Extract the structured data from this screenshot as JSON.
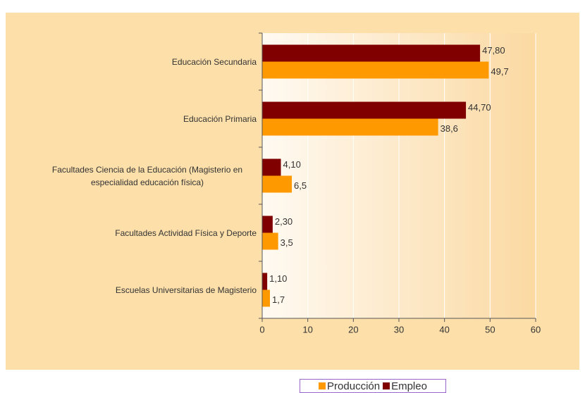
{
  "chart_data": {
    "type": "hbar",
    "categories": [
      "Educación Secundaria",
      "Educación Primaria",
      "Facultades Ciencia de la Educación (Magisterio en especialidad educación física)",
      "Facultades Actividad Física y Deporte",
      "Escuelas Universitarias de Magisterio"
    ],
    "series": [
      {
        "name": "Producción",
        "color": "#ff9900",
        "values": [
          49.7,
          38.6,
          6.5,
          3.5,
          1.7
        ],
        "value_labels": [
          "49,7",
          "38,6",
          "6,5",
          "3,5",
          "1,7"
        ]
      },
      {
        "name": "Empleo",
        "color": "#800000",
        "values": [
          47.8,
          44.7,
          4.1,
          2.3,
          1.1
        ],
        "value_labels": [
          "47,80",
          "44,70",
          "4,10",
          "2,30",
          "1,10"
        ]
      }
    ],
    "xlim": [
      0,
      60
    ],
    "xticks": [
      0,
      10,
      20,
      30,
      40,
      50,
      60
    ],
    "grid": true,
    "legend": "bottom"
  }
}
